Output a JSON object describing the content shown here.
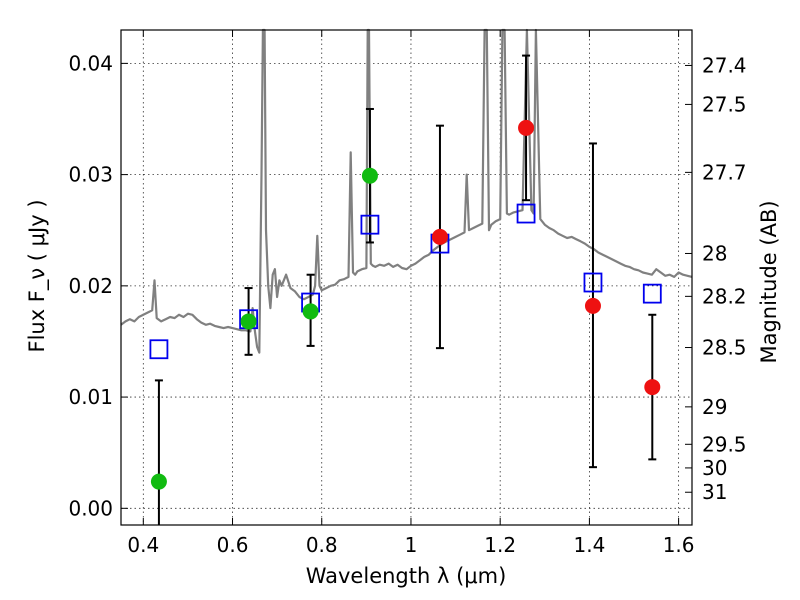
{
  "chart_data": {
    "type": "scatter",
    "xlabel": "Wavelength  λ (μm)",
    "ylabel": "Flux  F_ν  ( μJy )",
    "ylabel_right": "Magnitude (AB)",
    "xlim": [
      0.35,
      1.63
    ],
    "ylim": [
      -0.0015,
      0.043
    ],
    "grid": true,
    "colors": {
      "spectrum": "#808080",
      "green": "#11bb11",
      "red": "#ee1111",
      "model_square": "#0000ee",
      "errorbar": "#000000"
    },
    "x_ticks": [
      {
        "value": 0.4,
        "label": "0.4"
      },
      {
        "value": 0.6,
        "label": "0.6"
      },
      {
        "value": 0.8,
        "label": "0.8"
      },
      {
        "value": 1.0,
        "label": "1"
      },
      {
        "value": 1.2,
        "label": "1.2"
      },
      {
        "value": 1.4,
        "label": "1.4"
      },
      {
        "value": 1.6,
        "label": "1.6"
      }
    ],
    "y_ticks": [
      {
        "value": 0.0,
        "label": "0.00"
      },
      {
        "value": 0.01,
        "label": "0.01"
      },
      {
        "value": 0.02,
        "label": "0.02"
      },
      {
        "value": 0.03,
        "label": "0.03"
      },
      {
        "value": 0.04,
        "label": "0.04"
      }
    ],
    "mag_ticks": [
      {
        "value": 27.4,
        "label": "27.4"
      },
      {
        "value": 27.5,
        "label": "27.5"
      },
      {
        "value": 27.7,
        "label": "27.7"
      },
      {
        "value": 28.0,
        "label": "28"
      },
      {
        "value": 28.2,
        "label": "28.2"
      },
      {
        "value": 28.5,
        "label": "28.5"
      },
      {
        "value": 29.0,
        "label": "29"
      },
      {
        "value": 29.5,
        "label": "29.5"
      },
      {
        "value": 30.0,
        "label": "30"
      },
      {
        "value": 31.0,
        "label": "31"
      }
    ],
    "photometry": [
      {
        "x": 0.435,
        "y": 0.0024,
        "err_low": 0.015,
        "err_high": 0.0091,
        "group": "green"
      },
      {
        "x": 0.636,
        "y": 0.0168,
        "err_low": 0.003,
        "err_high": 0.003,
        "group": "green"
      },
      {
        "x": 0.775,
        "y": 0.0177,
        "err_low": 0.0031,
        "err_high": 0.0033,
        "group": "green"
      },
      {
        "x": 0.908,
        "y": 0.0299,
        "err_low": 0.006,
        "err_high": 0.006,
        "group": "green"
      },
      {
        "x": 1.065,
        "y": 0.0244,
        "err_low": 0.01,
        "err_high": 0.01,
        "group": "red"
      },
      {
        "x": 1.258,
        "y": 0.0342,
        "err_low": 0.0065,
        "err_high": 0.0065,
        "group": "red"
      },
      {
        "x": 1.408,
        "y": 0.0182,
        "err_low": 0.0145,
        "err_high": 0.0146,
        "group": "red"
      },
      {
        "x": 1.541,
        "y": 0.0109,
        "err_low": 0.0065,
        "err_high": 0.0065,
        "group": "red"
      }
    ],
    "model_photometry": [
      {
        "x": 0.435,
        "y": 0.0143
      },
      {
        "x": 0.636,
        "y": 0.017
      },
      {
        "x": 0.775,
        "y": 0.0185
      },
      {
        "x": 0.908,
        "y": 0.0255
      },
      {
        "x": 1.065,
        "y": 0.0238
      },
      {
        "x": 1.258,
        "y": 0.0265
      },
      {
        "x": 1.408,
        "y": 0.0203
      },
      {
        "x": 1.541,
        "y": 0.0193
      }
    ],
    "spectrum": {
      "x": [
        0.35,
        0.36,
        0.37,
        0.38,
        0.39,
        0.4,
        0.41,
        0.42,
        0.425,
        0.43,
        0.44,
        0.45,
        0.46,
        0.47,
        0.48,
        0.49,
        0.5,
        0.51,
        0.52,
        0.53,
        0.54,
        0.55,
        0.56,
        0.57,
        0.58,
        0.59,
        0.6,
        0.61,
        0.62,
        0.63,
        0.64,
        0.645,
        0.65,
        0.655,
        0.66,
        0.665,
        0.668,
        0.672,
        0.675,
        0.68,
        0.685,
        0.69,
        0.695,
        0.7,
        0.705,
        0.71,
        0.72,
        0.73,
        0.74,
        0.75,
        0.76,
        0.77,
        0.78,
        0.785,
        0.79,
        0.795,
        0.8,
        0.81,
        0.82,
        0.83,
        0.84,
        0.85,
        0.86,
        0.865,
        0.87,
        0.875,
        0.88,
        0.89,
        0.9,
        0.903,
        0.906,
        0.91,
        0.915,
        0.92,
        0.93,
        0.94,
        0.95,
        0.96,
        0.97,
        0.98,
        0.99,
        1.0,
        1.01,
        1.02,
        1.03,
        1.04,
        1.05,
        1.06,
        1.07,
        1.08,
        1.09,
        1.1,
        1.11,
        1.12,
        1.125,
        1.13,
        1.14,
        1.15,
        1.16,
        1.165,
        1.17,
        1.175,
        1.18,
        1.19,
        1.2,
        1.205,
        1.21,
        1.215,
        1.22,
        1.23,
        1.24,
        1.25,
        1.26,
        1.27,
        1.275,
        1.28,
        1.29,
        1.3,
        1.31,
        1.32,
        1.33,
        1.34,
        1.35,
        1.36,
        1.37,
        1.38,
        1.39,
        1.4,
        1.41,
        1.42,
        1.43,
        1.44,
        1.45,
        1.46,
        1.47,
        1.48,
        1.49,
        1.5,
        1.51,
        1.52,
        1.53,
        1.54,
        1.55,
        1.56,
        1.57,
        1.58,
        1.59,
        1.6,
        1.61,
        1.62,
        1.63
      ],
      "y": [
        0.0165,
        0.0168,
        0.017,
        0.0168,
        0.0172,
        0.0174,
        0.0176,
        0.0178,
        0.0205,
        0.0171,
        0.0168,
        0.017,
        0.0172,
        0.0171,
        0.0174,
        0.0172,
        0.0175,
        0.0174,
        0.017,
        0.0167,
        0.0165,
        0.0166,
        0.0164,
        0.0163,
        0.0162,
        0.0163,
        0.0162,
        0.0161,
        0.016,
        0.016,
        0.0159,
        0.018,
        0.016,
        0.0145,
        0.014,
        0.03,
        0.043,
        0.043,
        0.025,
        0.02,
        0.018,
        0.021,
        0.0215,
        0.019,
        0.0205,
        0.02,
        0.021,
        0.0198,
        0.0195,
        0.019,
        0.0188,
        0.019,
        0.0192,
        0.02,
        0.0245,
        0.02,
        0.0196,
        0.0198,
        0.02,
        0.0201,
        0.0205,
        0.0206,
        0.0208,
        0.032,
        0.0212,
        0.021,
        0.0213,
        0.0215,
        0.0216,
        0.043,
        0.043,
        0.022,
        0.0218,
        0.0217,
        0.0219,
        0.0218,
        0.022,
        0.0217,
        0.0219,
        0.0216,
        0.0215,
        0.0218,
        0.022,
        0.0223,
        0.0226,
        0.0228,
        0.0232,
        0.0235,
        0.0238,
        0.024,
        0.0242,
        0.0244,
        0.0246,
        0.0248,
        0.03,
        0.025,
        0.0252,
        0.0254,
        0.0256,
        0.043,
        0.043,
        0.025,
        0.0255,
        0.0258,
        0.026,
        0.043,
        0.043,
        0.0265,
        0.0264,
        0.0266,
        0.0267,
        0.0268,
        0.043,
        0.0268,
        0.0265,
        0.043,
        0.026,
        0.0255,
        0.0252,
        0.025,
        0.0247,
        0.0245,
        0.0243,
        0.0244,
        0.0242,
        0.024,
        0.0238,
        0.0235,
        0.0233,
        0.023,
        0.0228,
        0.0226,
        0.0224,
        0.0222,
        0.022,
        0.0218,
        0.0217,
        0.0215,
        0.0214,
        0.0212,
        0.0211,
        0.021,
        0.0215,
        0.0212,
        0.0209,
        0.021,
        0.0208,
        0.0212,
        0.021,
        0.0209,
        0.0208
      ]
    }
  }
}
